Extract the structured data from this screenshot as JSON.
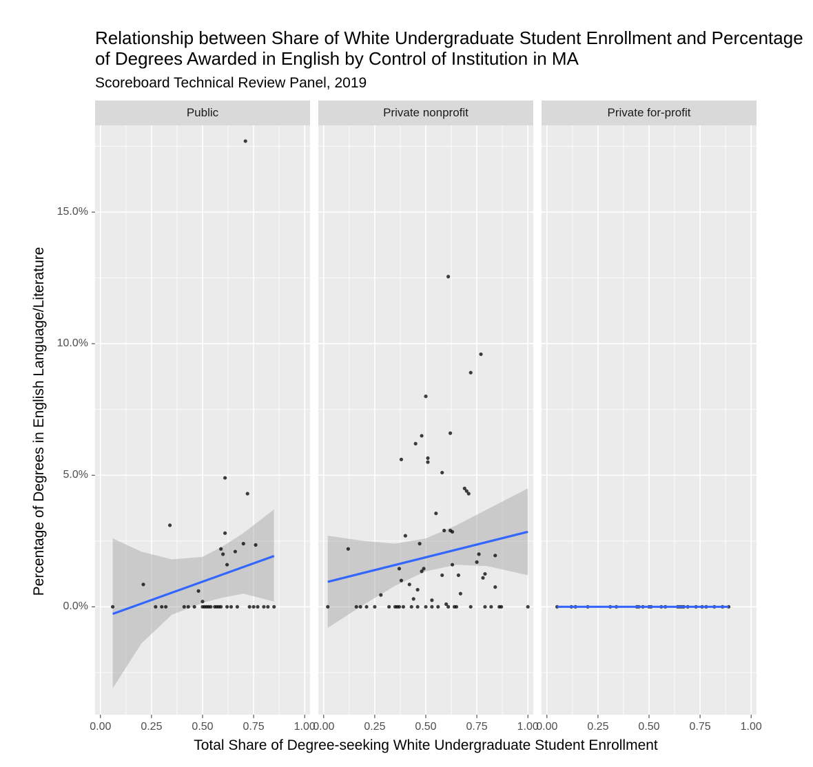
{
  "chart_data": {
    "type": "scatter",
    "title": "Relationship between Share of White Undergraduate Student Enrollment and Percentage of Degrees Awarded in English by Control of Institution in MA",
    "subtitle": "Scoreboard Technical Review Panel, 2019",
    "xlabel": "Total Share of Degree-seeking White Undergraduate Student Enrollment",
    "ylabel": "Percentage of Degrees in English Language/Literature",
    "xlim": [
      0,
      1
    ],
    "ylim": [
      -4.1,
      18.3
    ],
    "x_ticks": [
      "0.00",
      "0.25",
      "0.50",
      "0.75",
      "1.00"
    ],
    "y_ticks": [
      {
        "value": 0,
        "label": "0.0%"
      },
      {
        "value": 5,
        "label": "5.0%"
      },
      {
        "value": 10,
        "label": "10.0%"
      },
      {
        "value": 15,
        "label": "15.0%"
      }
    ],
    "grid": true,
    "colors": {
      "points": "#000000",
      "fit_line": "#3366ff",
      "ribbon": "#999999",
      "panel_bg": "#ebebeb",
      "strip_bg": "#d9d9d9"
    },
    "panels": [
      {
        "label": "Public",
        "points": [
          [
            0.06,
            0
          ],
          [
            0.21,
            0.85
          ],
          [
            0.27,
            0
          ],
          [
            0.3,
            0
          ],
          [
            0.32,
            0
          ],
          [
            0.34,
            3.1
          ],
          [
            0.41,
            0
          ],
          [
            0.43,
            0
          ],
          [
            0.46,
            0
          ],
          [
            0.48,
            0.6
          ],
          [
            0.5,
            0.2
          ],
          [
            0.5,
            0
          ],
          [
            0.51,
            0
          ],
          [
            0.52,
            0
          ],
          [
            0.53,
            0
          ],
          [
            0.54,
            0
          ],
          [
            0.56,
            0
          ],
          [
            0.57,
            0
          ],
          [
            0.58,
            0
          ],
          [
            0.59,
            2.2
          ],
          [
            0.59,
            0
          ],
          [
            0.6,
            2.0
          ],
          [
            0.61,
            2.8
          ],
          [
            0.61,
            4.9
          ],
          [
            0.62,
            1.6
          ],
          [
            0.62,
            0
          ],
          [
            0.64,
            0
          ],
          [
            0.66,
            2.1
          ],
          [
            0.67,
            0
          ],
          [
            0.7,
            2.4
          ],
          [
            0.71,
            17.7
          ],
          [
            0.72,
            4.3
          ],
          [
            0.73,
            0
          ],
          [
            0.75,
            0
          ],
          [
            0.76,
            2.35
          ],
          [
            0.77,
            0
          ],
          [
            0.8,
            0
          ],
          [
            0.82,
            0
          ],
          [
            0.85,
            0
          ]
        ],
        "fit": {
          "x": [
            0.06,
            0.85
          ],
          "y": [
            -0.27,
            1.93
          ]
        },
        "ribbon": {
          "x": [
            0.06,
            0.2,
            0.35,
            0.5,
            0.6,
            0.7,
            0.85
          ],
          "lower": [
            -3.1,
            -1.4,
            -0.3,
            0.15,
            0.35,
            0.5,
            0.2
          ],
          "upper": [
            2.6,
            2.1,
            1.8,
            1.9,
            2.3,
            2.8,
            3.7
          ]
        }
      },
      {
        "label": "Private nonprofit",
        "points": [
          [
            0.02,
            0
          ],
          [
            0.12,
            2.2
          ],
          [
            0.16,
            0
          ],
          [
            0.18,
            0
          ],
          [
            0.21,
            0
          ],
          [
            0.25,
            0
          ],
          [
            0.28,
            0.45
          ],
          [
            0.32,
            0
          ],
          [
            0.35,
            0
          ],
          [
            0.36,
            0
          ],
          [
            0.37,
            1.45
          ],
          [
            0.37,
            0
          ],
          [
            0.38,
            5.6
          ],
          [
            0.38,
            1.0
          ],
          [
            0.39,
            0
          ],
          [
            0.4,
            2.7
          ],
          [
            0.42,
            0.85
          ],
          [
            0.43,
            0
          ],
          [
            0.44,
            0.3
          ],
          [
            0.45,
            6.2
          ],
          [
            0.46,
            0.65
          ],
          [
            0.46,
            0
          ],
          [
            0.47,
            2.4
          ],
          [
            0.48,
            1.35
          ],
          [
            0.48,
            6.5
          ],
          [
            0.49,
            1.45
          ],
          [
            0.5,
            0
          ],
          [
            0.5,
            8.0
          ],
          [
            0.51,
            5.65
          ],
          [
            0.51,
            5.5
          ],
          [
            0.53,
            0.25
          ],
          [
            0.53,
            0
          ],
          [
            0.55,
            3.55
          ],
          [
            0.56,
            0
          ],
          [
            0.58,
            5.1
          ],
          [
            0.58,
            1.2
          ],
          [
            0.59,
            2.9
          ],
          [
            0.6,
            0.1
          ],
          [
            0.61,
            12.55
          ],
          [
            0.61,
            0
          ],
          [
            0.62,
            6.6
          ],
          [
            0.62,
            2.9
          ],
          [
            0.63,
            2.85
          ],
          [
            0.63,
            1.6
          ],
          [
            0.64,
            0
          ],
          [
            0.65,
            0
          ],
          [
            0.66,
            1.2
          ],
          [
            0.67,
            0.5
          ],
          [
            0.69,
            4.5
          ],
          [
            0.7,
            4.4
          ],
          [
            0.71,
            4.3
          ],
          [
            0.72,
            8.9
          ],
          [
            0.72,
            0
          ],
          [
            0.75,
            1.7
          ],
          [
            0.76,
            2.0
          ],
          [
            0.77,
            9.6
          ],
          [
            0.78,
            1.1
          ],
          [
            0.79,
            1.25
          ],
          [
            0.79,
            0
          ],
          [
            0.82,
            0
          ],
          [
            0.84,
            0.75
          ],
          [
            0.84,
            1.95
          ],
          [
            0.86,
            0
          ],
          [
            0.87,
            0
          ],
          [
            1.0,
            0
          ]
        ],
        "fit": {
          "x": [
            0.02,
            1.0
          ],
          "y": [
            0.95,
            2.85
          ]
        },
        "ribbon": {
          "x": [
            0.02,
            0.2,
            0.35,
            0.5,
            0.65,
            0.8,
            1.0
          ],
          "lower": [
            -0.8,
            0.1,
            0.8,
            1.35,
            1.6,
            1.55,
            1.2
          ],
          "upper": [
            2.7,
            2.5,
            2.4,
            2.6,
            3.1,
            3.7,
            4.5
          ]
        }
      },
      {
        "label": "Private for-profit",
        "points": [
          [
            0.05,
            0
          ],
          [
            0.12,
            0
          ],
          [
            0.14,
            0
          ],
          [
            0.2,
            0
          ],
          [
            0.31,
            0
          ],
          [
            0.34,
            0
          ],
          [
            0.44,
            0
          ],
          [
            0.45,
            0
          ],
          [
            0.47,
            0
          ],
          [
            0.5,
            0
          ],
          [
            0.51,
            0
          ],
          [
            0.56,
            0
          ],
          [
            0.58,
            0
          ],
          [
            0.64,
            0
          ],
          [
            0.65,
            0
          ],
          [
            0.66,
            0
          ],
          [
            0.67,
            0
          ],
          [
            0.69,
            0
          ],
          [
            0.73,
            0
          ],
          [
            0.76,
            0
          ],
          [
            0.78,
            0
          ],
          [
            0.82,
            0
          ],
          [
            0.86,
            0
          ],
          [
            0.89,
            0
          ]
        ],
        "fit": {
          "x": [
            0.05,
            0.89
          ],
          "y": [
            0,
            0
          ]
        },
        "ribbon": {
          "x": [
            0.05,
            0.89
          ],
          "lower": [
            -0.02,
            -0.02
          ],
          "upper": [
            0.02,
            0.02
          ]
        }
      }
    ]
  }
}
